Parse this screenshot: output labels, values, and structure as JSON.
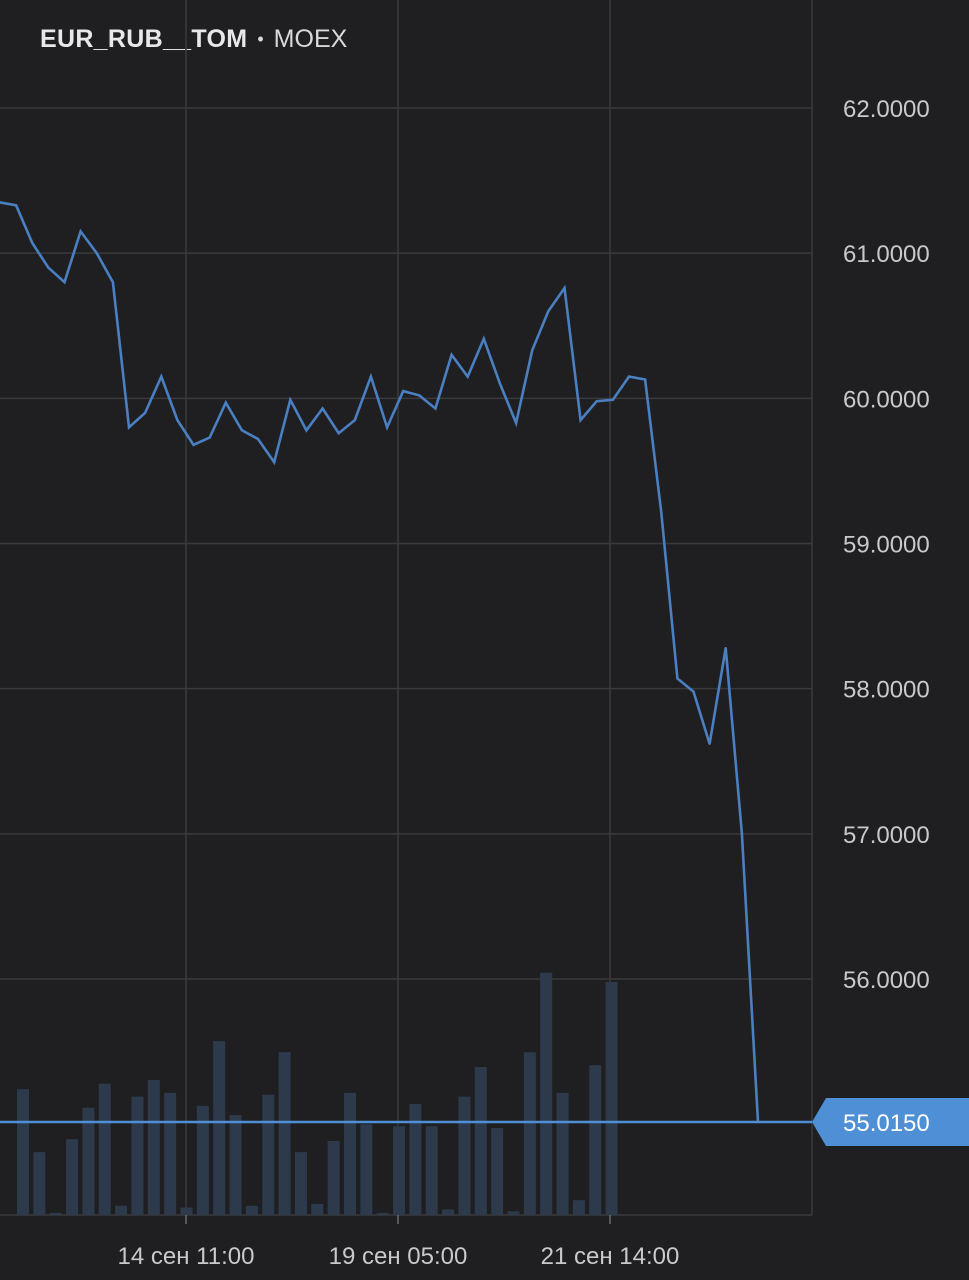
{
  "header": {
    "ticker": "EUR_RUB__TOM",
    "separator": "•",
    "exchange": "MOEX"
  },
  "colors": {
    "background": "#1f1f21",
    "grid": "#3a3a3e",
    "line": "#4a7fc1",
    "volume": "#2c3a4c",
    "price_tag": "#4f8fd6"
  },
  "chart_data": {
    "type": "line",
    "title": "",
    "xlabel": "",
    "ylabel": "",
    "ylim": [
      54.35,
      62.75
    ],
    "y_ticks": [
      "62.0000",
      "61.0000",
      "60.0000",
      "59.0000",
      "58.0000",
      "57.0000",
      "56.0000"
    ],
    "x_tick_labels": [
      "14 сен 11:00",
      "19 сен 05:00",
      "21 сен 14:00"
    ],
    "grid": true,
    "current_price": 55.015,
    "current_price_label": "55.0150",
    "series": [
      {
        "values": [
          61.35,
          61.33,
          61.07,
          60.9,
          60.8,
          61.15,
          61.0,
          60.8,
          59.8,
          59.9,
          60.15,
          59.85,
          59.68,
          59.73,
          59.97,
          59.78,
          59.72,
          59.56,
          59.99,
          59.78,
          59.93,
          59.76,
          59.85,
          60.15,
          59.8,
          60.05,
          60.02,
          59.93,
          60.3,
          60.15,
          60.41,
          60.1,
          59.83,
          60.33,
          60.6,
          60.76,
          59.85,
          59.98,
          59.99,
          60.15,
          60.13,
          59.22,
          58.07,
          57.98,
          57.62,
          58.28,
          57.0,
          55.015
        ]
      }
    ],
    "volume": {
      "values": [
        0.68,
        0.34,
        0.01,
        0.41,
        0.58,
        0.71,
        0.05,
        0.64,
        0.73,
        0.66,
        0.04,
        0.59,
        0.94,
        0.54,
        0.05,
        0.65,
        0.88,
        0.34,
        0.06,
        0.4,
        0.66,
        0.49,
        0.01,
        0.48,
        0.6,
        0.48,
        0.03,
        0.64,
        0.8,
        0.47,
        0.02,
        0.88,
        1.31,
        0.66,
        0.08,
        0.81,
        1.26
      ]
    }
  }
}
